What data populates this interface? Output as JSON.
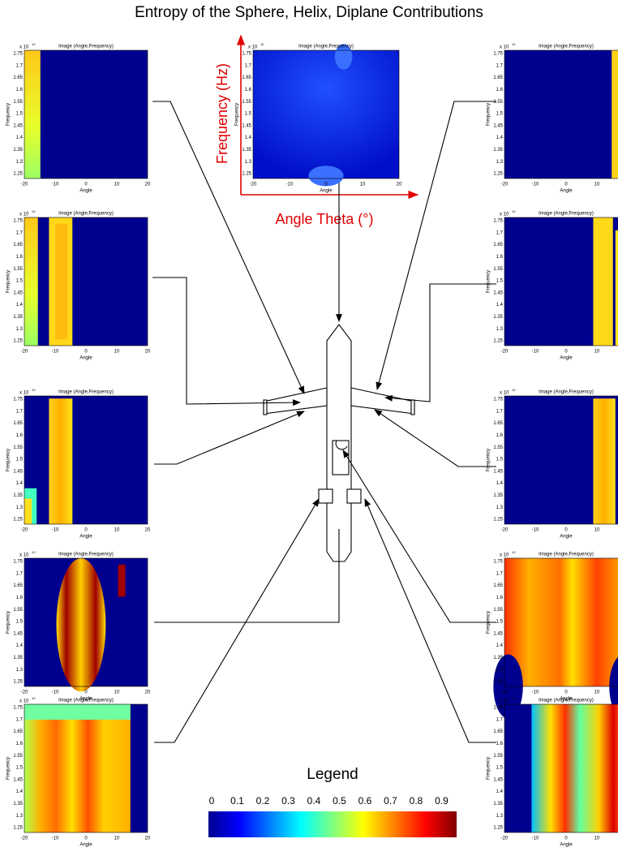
{
  "title": "Entropy of the Sphere, Helix, Diplane Contributions",
  "axes_annotation": {
    "y_label": "Frequency (Hz)",
    "x_label": "Angle Theta (°)"
  },
  "panel": {
    "exponent_base": "x 10",
    "exponent": "10",
    "title": "Image (Angle,Frequency)",
    "y_label": "Frequency",
    "x_label": "Angle",
    "yticks": [
      "1.25",
      "1.3",
      "1.35",
      "1.4",
      "1.45",
      "1.5",
      "1.55",
      "1.6",
      "1.65",
      "1.7",
      "1.75"
    ],
    "xticks": [
      "-20",
      "-10",
      "0",
      "10",
      "20"
    ]
  },
  "legend": {
    "title": "Legend",
    "ticks": [
      "0",
      "0.1",
      "0.2",
      "0.3",
      "0.4",
      "0.5",
      "0.6",
      "0.7",
      "0.8",
      "0.9"
    ]
  }
}
